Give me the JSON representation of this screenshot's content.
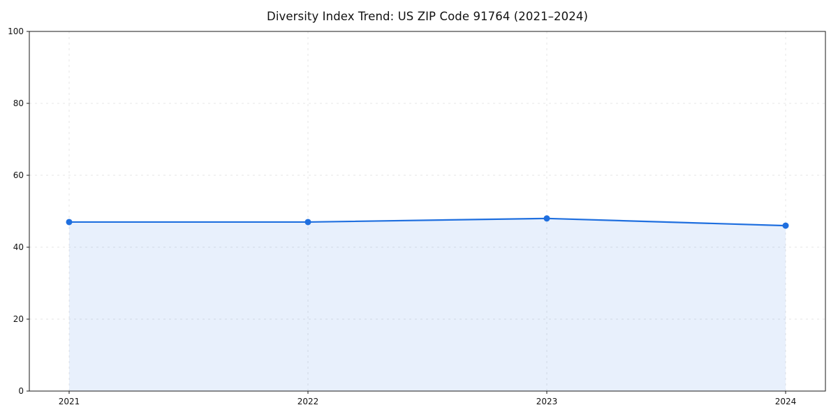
{
  "title": "Diversity Index Trend: US ZIP Code 91764 (2021–2024)",
  "colors": {
    "line": "#1f6fdf",
    "marker": "#1f6fdf",
    "fill": "#1f6fdf",
    "fill_opacity": "0.10",
    "grid": "#e4e4e4",
    "axis": "#1a1a1a",
    "tick_label": "#111111"
  },
  "chart_data": {
    "type": "area",
    "title": "Diversity Index Trend: US ZIP Code 91764 (2021–2024)",
    "x": [
      2021,
      2022,
      2023,
      2024
    ],
    "values": [
      47,
      47,
      48,
      46
    ],
    "series_name": "Diversity Index",
    "xlabel": "",
    "ylabel": "",
    "ylim": [
      0,
      100
    ],
    "yticks": [
      0,
      20,
      40,
      60,
      80,
      100
    ],
    "grid": "dashed horizontal and vertical",
    "legend": "none",
    "marker": "circle",
    "fill_to_zero": true
  }
}
